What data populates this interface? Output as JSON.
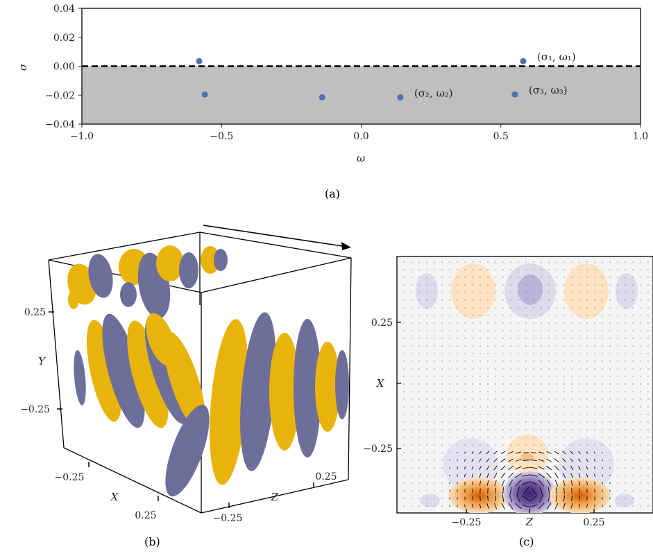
{
  "chart_data": [
    {
      "type": "scatter",
      "panel_label": "(a)",
      "xlabel": "ω",
      "ylabel": "σ",
      "xlim": [
        -1.0,
        1.0
      ],
      "ylim": [
        -0.04,
        0.04
      ],
      "xticks": [
        "−1.0",
        "−0.5",
        "0.0",
        "0.5",
        "1.0"
      ],
      "xtick_values": [
        -1.0,
        -0.5,
        0.0,
        0.5,
        1.0
      ],
      "yticks": [
        "0.04",
        "0.02",
        "0.00",
        "−0.02",
        "−0.04"
      ],
      "ytick_values": [
        0.04,
        0.02,
        0.0,
        -0.02,
        -0.04
      ],
      "shaded_region": {
        "from": -0.04,
        "to": 0.0,
        "color": "#bfbfbf"
      },
      "reference_line": {
        "y": 0.0,
        "style": "dashed"
      },
      "points_x": [
        -0.58,
        -0.56,
        -0.14,
        0.14,
        0.55,
        0.58
      ],
      "points_y": [
        0.0035,
        -0.0195,
        -0.0215,
        -0.0215,
        -0.0195,
        0.0035
      ],
      "point_color": "#4c72b0",
      "annotations": [
        {
          "text": "(σ₁, ω₁)",
          "x": 0.58,
          "y": 0.0035
        },
        {
          "text": "(σ₂, ω₂)",
          "x": 0.14,
          "y": -0.0215
        },
        {
          "text": "(σ₃, ω₃)",
          "x": 0.55,
          "y": -0.0195
        }
      ]
    },
    {
      "type": "other",
      "panel_label": "(b)",
      "description_labels": {
        "xlabel": "X",
        "ylabel": "Y",
        "zlabel": "Z"
      },
      "yticks": [
        "0.25",
        "−0.25"
      ],
      "xticks": [
        "−0.25",
        "0.25"
      ],
      "zticks": [
        "−0.25",
        "0.25"
      ],
      "colors": {
        "positive": "#e8b40c",
        "negative": "#6e6e9a"
      }
    },
    {
      "type": "heatmap",
      "panel_label": "(c)",
      "xlabel": "Z",
      "ylabel": "X",
      "xticks": [
        "−0.25",
        "0.25"
      ],
      "yticks": [
        "0.25",
        "−0.25"
      ],
      "colors": {
        "positive": "#e07a10",
        "negative": "#4b2a7b"
      }
    }
  ],
  "captions": {
    "a": "(a)",
    "b": "(b)",
    "c": "(c)"
  }
}
